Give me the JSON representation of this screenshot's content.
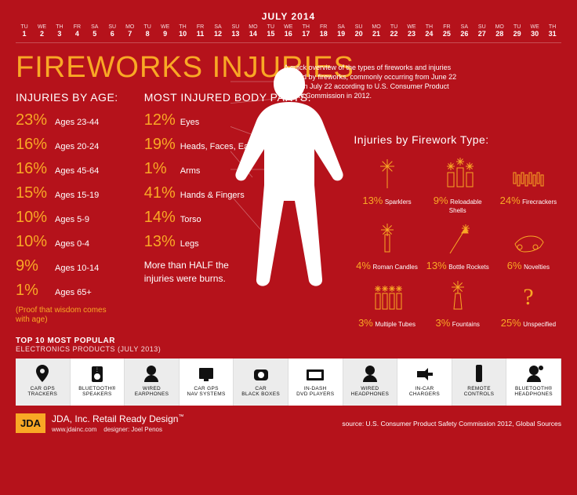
{
  "calendar": {
    "title": "JULY 2014",
    "startDow": 2,
    "daysInMonth": 31,
    "dowLabels": [
      "SU",
      "MO",
      "TU",
      "WE",
      "TH",
      "FR",
      "SA"
    ]
  },
  "mainTitle": "FIREWORKS INJURIES",
  "intro": "A quick overview of the types of fireworks and injuries caused by fireworks, commonly occurring from June 22 through July 22 according to U.S. Consumer Product Safety Commission in 2012.",
  "byAge": {
    "head": "Injuries by Age:",
    "items": [
      {
        "pct": "23%",
        "label": "Ages 23-44"
      },
      {
        "pct": "16%",
        "label": "Ages 20-24"
      },
      {
        "pct": "16%",
        "label": "Ages 45-64"
      },
      {
        "pct": "15%",
        "label": "Ages 15-19"
      },
      {
        "pct": "10%",
        "label": "Ages 5-9"
      },
      {
        "pct": "10%",
        "label": "Ages 0-4"
      },
      {
        "pct": "9%",
        "label": "Ages 10-14"
      },
      {
        "pct": "1%",
        "label": "Ages 65+"
      }
    ],
    "proof": "(Proof that wisdom comes with age)"
  },
  "bodyParts": {
    "head": "Most Injured Body Parts:",
    "items": [
      {
        "pct": "12%",
        "label": "Eyes"
      },
      {
        "pct": "19%",
        "label": "Heads, Faces, Ears"
      },
      {
        "pct": "1%",
        "label": "Arms"
      },
      {
        "pct": "41%",
        "label": "Hands & Fingers"
      },
      {
        "pct": "14%",
        "label": "Torso"
      },
      {
        "pct": "13%",
        "label": "Legs"
      }
    ],
    "note": "More than HALF the injuries were burns."
  },
  "byType": {
    "head": "Injuries by Firework Type:",
    "items": [
      {
        "pct": "13%",
        "label": "Sparklers",
        "icon": "sparkler"
      },
      {
        "pct": "9%",
        "label": "Reloadable Shells",
        "icon": "shells"
      },
      {
        "pct": "24%",
        "label": "Firecrackers",
        "icon": "firecrackers"
      },
      {
        "pct": "4%",
        "label": "Roman Candles",
        "icon": "roman"
      },
      {
        "pct": "13%",
        "label": "Bottle Rockets",
        "icon": "rocket"
      },
      {
        "pct": "6%",
        "label": "Novelties",
        "icon": "novelty"
      },
      {
        "pct": "3%",
        "label": "Multiple Tubes",
        "icon": "tubes"
      },
      {
        "pct": "3%",
        "label": "Fountains",
        "icon": "fountain"
      },
      {
        "pct": "25%",
        "label": "Unspecified",
        "icon": "question"
      }
    ]
  },
  "products": {
    "headBold": "TOP 10 MOST POPULAR",
    "headSub": "ELECTRONICS PRODUCTS (JULY 2013)",
    "items": [
      {
        "label": "CAR GPS\nTRACKERS",
        "icon": "pin"
      },
      {
        "label": "BLUETOOTH®\nSPEAKERS",
        "icon": "bt-speaker"
      },
      {
        "label": "WIRED\nEARPHONES",
        "icon": "head"
      },
      {
        "label": "CAR GPS\nNAV SYSTEMS",
        "icon": "nav"
      },
      {
        "label": "CAR\nBLACK BOXES",
        "icon": "cam"
      },
      {
        "label": "IN-DASH\nDVD PLAYERS",
        "icon": "dvd"
      },
      {
        "label": "WIRED\nHEADPHONES",
        "icon": "head"
      },
      {
        "label": "IN-CAR\nCHARGERS",
        "icon": "charger"
      },
      {
        "label": "REMOTE\nCONTROLS",
        "icon": "remote"
      },
      {
        "label": "BLUETOOTH®\nHEADPHONES",
        "icon": "bt-head"
      }
    ]
  },
  "footer": {
    "logo": "JDA",
    "brand": "JDA, Inc. Retail Ready Design",
    "tm": "™",
    "url": "www.jdainc.com",
    "designer": "designer: Joel Penos",
    "source": "source: U.S. Consumer Product Safety Commission 2012, Global Sources"
  },
  "colors": {
    "bg": "#b5121b",
    "accent": "#f9a825",
    "white": "#ffffff"
  }
}
